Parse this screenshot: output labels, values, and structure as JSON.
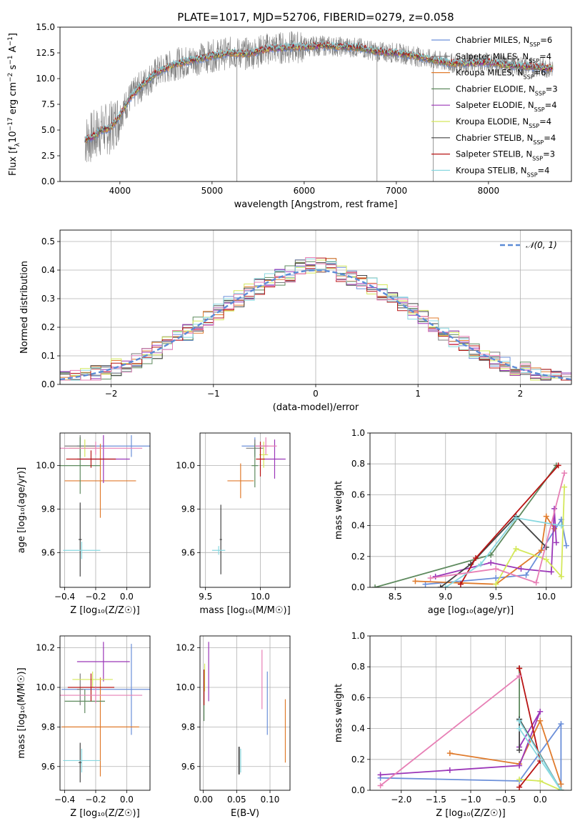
{
  "figure": {
    "title": "PLATE=1017, MJD=52706, FIBERID=0279, z=0.058"
  },
  "colors": {
    "chabrier_miles": "#6b8fd9",
    "salpeter_miles": "#7b7b7b",
    "kroupa_miles": "#e07b2c",
    "chabrier_elodie": "#5e8a5e",
    "salpeter_elodie": "#9b36b8",
    "kroupa_elodie": "#d4e85a",
    "chabrier_stelib": "#444444",
    "salpeter_stelib": "#b81414",
    "kroupa_stelib": "#88d8e0",
    "extra_pink": "#e77fb5",
    "normal_dashed": "#5b8bd6",
    "grid": "#b0b0b0",
    "data_spectrum": "#808080"
  },
  "chart_data": [
    {
      "type": "line",
      "name": "spectrum",
      "title": "PLATE=1017, MJD=52706, FIBERID=0279, z=0.058",
      "xlabel": "wavelength [Angstrom, rest frame]",
      "ylabel": "Flux [f_λ 10^-17 erg cm^-2 s^-1 A^-1]",
      "xlim": [
        3350,
        8900
      ],
      "ylim": [
        0,
        15
      ],
      "xticks": [
        4000,
        5000,
        6000,
        7000,
        8000
      ],
      "yticks": [
        0.0,
        2.5,
        5.0,
        7.5,
        10.0,
        12.5,
        15.0
      ],
      "ytick_labels": [
        "0.0",
        "2.5",
        "5.0",
        "7.5",
        "10.0",
        "12.5",
        "15.0"
      ],
      "grid": false,
      "legend_position": "right",
      "legend": [
        {
          "label": "Chabrier MILES, N",
          "sub": "SSP",
          "suffix": "=6",
          "color_key": "chabrier_miles"
        },
        {
          "label": "Salpeter MILES, N",
          "sub": "SSP",
          "suffix": "=4",
          "color_key": "salpeter_miles"
        },
        {
          "label": "Kroupa MILES, N",
          "sub": "SSP",
          "suffix": "=6",
          "color_key": "kroupa_miles"
        },
        {
          "label": "Chabrier ELODIE, N",
          "sub": "SSP",
          "suffix": "=3",
          "color_key": "chabrier_elodie"
        },
        {
          "label": "Salpeter ELODIE, N",
          "sub": "SSP",
          "suffix": "=4",
          "color_key": "salpeter_elodie"
        },
        {
          "label": "Kroupa ELODIE, N",
          "sub": "SSP",
          "suffix": "=4",
          "color_key": "kroupa_elodie"
        },
        {
          "label": "Chabrier STELIB, N",
          "sub": "SSP",
          "suffix": "=4",
          "color_key": "chabrier_stelib"
        },
        {
          "label": "Salpeter STELIB, N",
          "sub": "SSP",
          "suffix": "=3",
          "color_key": "salpeter_stelib"
        },
        {
          "label": "Kroupa STELIB, N",
          "sub": "SSP",
          "suffix": "=4",
          "color_key": "kroupa_stelib"
        }
      ],
      "envelope_x": [
        3620,
        3700,
        3800,
        3900,
        3950,
        4000,
        4100,
        4200,
        4300,
        4400,
        4500,
        4600,
        4800,
        5000,
        5200,
        5400,
        5600,
        5800,
        6000,
        6200,
        6400,
        6600,
        6800,
        7000,
        7200,
        7400,
        7600,
        7800,
        8000,
        8200,
        8400,
        8700
      ],
      "envelope_y": [
        4.0,
        4.3,
        5.0,
        5.2,
        5.8,
        6.4,
        8.0,
        9.0,
        9.8,
        10.6,
        11.0,
        11.4,
        11.8,
        12.2,
        12.5,
        12.4,
        12.9,
        13.0,
        13.1,
        13.2,
        13.1,
        13.0,
        12.6,
        12.5,
        12.2,
        11.8,
        11.5,
        11.5,
        11.6,
        11.3,
        11.2,
        11.0
      ],
      "data_spikes_x": [
        5270,
        6790,
        7400
      ],
      "data_spikes_y": [
        0.0,
        0.0,
        0.0
      ]
    },
    {
      "type": "line",
      "name": "residuals",
      "xlabel": "(data-model)/error",
      "ylabel": "Normed distribution",
      "xlim": [
        -2.5,
        2.5
      ],
      "ylim": [
        0,
        0.54
      ],
      "xticks": [
        -2,
        -1,
        0,
        1,
        2
      ],
      "xtick_labels": [
        "−2",
        "−1",
        "0",
        "1",
        "2"
      ],
      "yticks": [
        0.0,
        0.1,
        0.2,
        0.3,
        0.4,
        0.5
      ],
      "ytick_labels": [
        "0.0",
        "0.1",
        "0.2",
        "0.3",
        "0.4",
        "0.5"
      ],
      "grid": true,
      "legend_position": "top-right",
      "legend_label": "𝒩(0, 1)",
      "bin_width": 0.1
    },
    {
      "type": "scatter",
      "name": "age_vs_Z",
      "xlabel": "Z [log₁₀(Z/Z☉)]",
      "ylabel": "age  [log₁₀(age/yr)]",
      "xlim": [
        -0.43,
        0.15
      ],
      "ylim": [
        9.44,
        10.15
      ],
      "xticks": [
        -0.4,
        -0.2,
        0.0
      ],
      "xtick_labels": [
        "−0.4",
        "−0.2",
        "0.0"
      ],
      "yticks": [
        9.6,
        9.8,
        10.0
      ],
      "ytick_labels": [
        "9.6",
        "9.8",
        "10.0"
      ],
      "grid": true,
      "points": [
        {
          "color_key": "chabrier_miles",
          "x": 0.03,
          "y": 10.09,
          "xerr": 0.35,
          "yerr": 0.05
        },
        {
          "color_key": "salpeter_miles",
          "x": -0.3,
          "y": 10.09,
          "xerr": 0.1,
          "yerr": 0.05
        },
        {
          "color_key": "kroupa_miles",
          "x": -0.17,
          "y": 9.93,
          "xerr": 0.23,
          "yerr": 0.17
        },
        {
          "color_key": "chabrier_elodie",
          "x": -0.3,
          "y": 10.0,
          "xerr": 0.13,
          "yerr": 0.13
        },
        {
          "color_key": "salpeter_elodie",
          "x": -0.15,
          "y": 10.03,
          "xerr": 0.17,
          "yerr": 0.11
        },
        {
          "color_key": "kroupa_elodie",
          "x": -0.27,
          "y": 10.08,
          "xerr": 0.1,
          "yerr": 0.04
        },
        {
          "color_key": "chabrier_stelib",
          "x": -0.3,
          "y": 9.66,
          "xerr": 0.01,
          "yerr": 0.17
        },
        {
          "color_key": "salpeter_stelib",
          "x": -0.23,
          "y": 10.03,
          "xerr": 0.16,
          "yerr": 0.04
        },
        {
          "color_key": "kroupa_stelib",
          "x": -0.29,
          "y": 9.61,
          "xerr": 0.12,
          "yerr": 0.04
        },
        {
          "color_key": "extra_pink",
          "x": -0.2,
          "y": 10.08,
          "xerr": 0.3,
          "yerr": 0.03
        }
      ]
    },
    {
      "type": "scatter",
      "name": "age_vs_mass",
      "xlabel": "mass [log₁₀(M/M☉)]",
      "ylabel": "",
      "xlim": [
        9.45,
        10.27
      ],
      "ylim": [
        9.44,
        10.15
      ],
      "xticks": [
        9.5,
        10.0
      ],
      "xtick_labels": [
        "9.5",
        "10.0"
      ],
      "yticks": [
        9.6,
        9.8,
        10.0
      ],
      "ytick_labels": [
        "9.6",
        "9.8",
        "10.0"
      ],
      "grid": true,
      "points": [
        {
          "color_key": "chabrier_miles",
          "x": 9.95,
          "y": 10.09,
          "xerr": 0.12,
          "yerr": 0.04
        },
        {
          "color_key": "salpeter_miles",
          "x": 9.95,
          "y": 10.08,
          "xerr": 0.08,
          "yerr": 0.04
        },
        {
          "color_key": "kroupa_miles",
          "x": 9.82,
          "y": 9.93,
          "xerr": 0.12,
          "yerr": 0.08
        },
        {
          "color_key": "chabrier_elodie",
          "x": 9.95,
          "y": 10.0,
          "xerr": 0.03,
          "yerr": 0.1
        },
        {
          "color_key": "salpeter_elodie",
          "x": 10.13,
          "y": 10.03,
          "xerr": 0.1,
          "yerr": 0.09
        },
        {
          "color_key": "kroupa_elodie",
          "x": 10.03,
          "y": 10.05,
          "xerr": 0.04,
          "yerr": 0.06
        },
        {
          "color_key": "chabrier_stelib",
          "x": 9.64,
          "y": 9.66,
          "xerr": 0.01,
          "yerr": 0.16
        },
        {
          "color_key": "salpeter_stelib",
          "x": 10.0,
          "y": 10.03,
          "xerr": 0.04,
          "yerr": 0.08
        },
        {
          "color_key": "kroupa_stelib",
          "x": 9.62,
          "y": 9.61,
          "xerr": 0.06,
          "yerr": 0.02
        },
        {
          "color_key": "extra_pink",
          "x": 10.05,
          "y": 10.09,
          "xerr": 0.1,
          "yerr": 0.04
        }
      ]
    },
    {
      "type": "line",
      "name": "mass_weight_vs_age",
      "xlabel": "age  [log₁₀(age/yr)]",
      "ylabel": "mass weight",
      "xlim": [
        8.25,
        10.25
      ],
      "ylim": [
        0,
        1
      ],
      "xticks": [
        8.5,
        9.0,
        9.5,
        10.0
      ],
      "xtick_labels": [
        "8.5",
        "9.0",
        "9.5",
        "10.0"
      ],
      "yticks": [
        0.0,
        0.2,
        0.4,
        0.6,
        0.8,
        1.0
      ],
      "ytick_labels": [
        "0.0",
        "0.2",
        "0.4",
        "0.6",
        "0.8",
        "1.0"
      ],
      "grid": true,
      "series": [
        {
          "color_key": "chabrier_miles",
          "x": [
            8.8,
            9.5,
            9.8,
            10.15,
            10.2
          ],
          "y": [
            0.02,
            0.06,
            0.08,
            0.44,
            0.27
          ]
        },
        {
          "color_key": "kroupa_miles",
          "x": [
            8.7,
            9.5,
            9.95,
            10.0,
            10.08
          ],
          "y": [
            0.04,
            0.02,
            0.24,
            0.46,
            0.38
          ]
        },
        {
          "color_key": "chabrier_elodie",
          "x": [
            8.3,
            9.45,
            10.1
          ],
          "y": [
            0.0,
            0.21,
            0.79
          ]
        },
        {
          "color_key": "salpeter_elodie",
          "x": [
            8.9,
            9.45,
            9.75,
            10.05,
            10.08,
            10.1
          ],
          "y": [
            0.07,
            0.16,
            0.12,
            0.1,
            0.51,
            0.29
          ]
        },
        {
          "color_key": "kroupa_elodie",
          "x": [
            9.5,
            9.7,
            10.0,
            10.15,
            10.18
          ],
          "y": [
            0.02,
            0.25,
            0.18,
            0.07,
            0.65
          ]
        },
        {
          "color_key": "chabrier_stelib",
          "x": [
            8.95,
            9.25,
            9.7,
            10.0
          ],
          "y": [
            0.0,
            0.15,
            0.46,
            0.26
          ]
        },
        {
          "color_key": "salpeter_stelib",
          "x": [
            9.15,
            9.3,
            10.12
          ],
          "y": [
            0.02,
            0.19,
            0.79
          ]
        },
        {
          "color_key": "kroupa_stelib",
          "x": [
            9.0,
            9.35,
            9.7,
            10.15
          ],
          "y": [
            0.0,
            0.15,
            0.45,
            0.4
          ]
        },
        {
          "color_key": "extra_pink",
          "x": [
            8.85,
            9.5,
            9.9,
            10.18
          ],
          "y": [
            0.06,
            0.12,
            0.03,
            0.74
          ]
        }
      ]
    },
    {
      "type": "scatter",
      "name": "mass_vs_Z",
      "xlabel": "Z [log₁₀(Z/Z☉)]",
      "ylabel": "mass [log₁₀(M/M☉)]",
      "xlim": [
        -0.43,
        0.15
      ],
      "ylim": [
        9.48,
        10.26
      ],
      "xticks": [
        -0.4,
        -0.2,
        0.0
      ],
      "xtick_labels": [
        "−0.4",
        "−0.2",
        "0.0"
      ],
      "yticks": [
        9.6,
        9.8,
        10.0,
        10.2
      ],
      "ytick_labels": [
        "9.6",
        "9.8",
        "10.0",
        "10.2"
      ],
      "grid": true,
      "points": [
        {
          "color_key": "chabrier_miles",
          "x": 0.03,
          "y": 9.99,
          "xerr": 0.45,
          "yerr": 0.23
        },
        {
          "color_key": "salpeter_miles",
          "x": -0.3,
          "y": 9.99,
          "xerr": 0.02,
          "yerr": 0.08
        },
        {
          "color_key": "kroupa_miles",
          "x": -0.17,
          "y": 9.8,
          "xerr": 0.25,
          "yerr": 0.25
        },
        {
          "color_key": "chabrier_elodie",
          "x": -0.27,
          "y": 9.93,
          "xerr": 0.13,
          "yerr": 0.06
        },
        {
          "color_key": "salpeter_elodie",
          "x": -0.15,
          "y": 10.13,
          "xerr": 0.17,
          "yerr": 0.1
        },
        {
          "color_key": "kroupa_elodie",
          "x": -0.22,
          "y": 10.04,
          "xerr": 0.13,
          "yerr": 0.04
        },
        {
          "color_key": "chabrier_stelib",
          "x": -0.3,
          "y": 9.62,
          "xerr": 0.01,
          "yerr": 0.1
        },
        {
          "color_key": "salpeter_stelib",
          "x": -0.23,
          "y": 10.0,
          "xerr": 0.15,
          "yerr": 0.07
        },
        {
          "color_key": "kroupa_stelib",
          "x": -0.29,
          "y": 9.63,
          "xerr": 0.12,
          "yerr": 0.06
        },
        {
          "color_key": "extra_pink",
          "x": -0.2,
          "y": 9.96,
          "xerr": 0.3,
          "yerr": 0.04
        }
      ]
    },
    {
      "type": "scatter",
      "name": "mass_vs_ebv",
      "xlabel": "E(B-V)",
      "ylabel": "",
      "xlim": [
        -0.005,
        0.13
      ],
      "ylim": [
        9.48,
        10.26
      ],
      "xticks": [
        0.0,
        0.05,
        0.1
      ],
      "xtick_labels": [
        "0.00",
        "0.05",
        "0.10"
      ],
      "yticks": [
        9.6,
        9.8,
        10.0,
        10.2
      ],
      "ytick_labels": [
        "9.6",
        "9.8",
        "10.0",
        "10.2"
      ],
      "grid": true,
      "points": [
        {
          "color_key": "chabrier_miles",
          "x": 0.096,
          "y": 9.92,
          "xerr": 0.0,
          "yerr": 0.16
        },
        {
          "color_key": "salpeter_miles",
          "x": 0.053,
          "y": 9.63,
          "xerr": 0.0,
          "yerr": 0.07
        },
        {
          "color_key": "kroupa_miles",
          "x": 0.123,
          "y": 9.78,
          "xerr": 0.0,
          "yerr": 0.16
        },
        {
          "color_key": "chabrier_elodie",
          "x": 0.001,
          "y": 9.93,
          "xerr": 0.0,
          "yerr": 0.1
        },
        {
          "color_key": "salpeter_elodie",
          "x": 0.008,
          "y": 10.08,
          "xerr": 0.0,
          "yerr": 0.15
        },
        {
          "color_key": "kroupa_elodie",
          "x": 0.002,
          "y": 10.05,
          "xerr": 0.0,
          "yerr": 0.07
        },
        {
          "color_key": "chabrier_stelib",
          "x": 0.054,
          "y": 9.63,
          "xerr": 0.0,
          "yerr": 0.07
        },
        {
          "color_key": "salpeter_stelib",
          "x": 0.001,
          "y": 10.0,
          "xerr": 0.0,
          "yerr": 0.09
        },
        {
          "color_key": "kroupa_stelib",
          "x": 0.056,
          "y": 9.63,
          "xerr": 0.0,
          "yerr": 0.06
        },
        {
          "color_key": "extra_pink",
          "x": 0.088,
          "y": 10.04,
          "xerr": 0.0,
          "yerr": 0.15
        }
      ]
    },
    {
      "type": "line",
      "name": "mass_weight_vs_Z",
      "xlabel": "Z [log₁₀(Z/Z☉)]",
      "ylabel": "mass weight",
      "xlim": [
        -2.45,
        0.45
      ],
      "ylim": [
        0,
        1
      ],
      "xticks": [
        -2.0,
        -1.5,
        -1.0,
        -0.5,
        0.0
      ],
      "xtick_labels": [
        "−2.0",
        "−1.5",
        "−1.0",
        "−0.5",
        "0.0"
      ],
      "yticks": [
        0.0,
        0.2,
        0.4,
        0.6,
        0.8,
        1.0
      ],
      "ytick_labels": [
        "0.0",
        "0.2",
        "0.4",
        "0.6",
        "0.8",
        "1.0"
      ],
      "grid": true,
      "series": [
        {
          "color_key": "chabrier_miles",
          "x": [
            -2.3,
            -0.3,
            0.3,
            0.3
          ],
          "y": [
            0.08,
            0.06,
            0.43,
            0.0
          ]
        },
        {
          "color_key": "kroupa_miles",
          "x": [
            -1.3,
            -0.3,
            0.0,
            0.3
          ],
          "y": [
            0.24,
            0.17,
            0.45,
            0.04
          ]
        },
        {
          "color_key": "chabrier_elodie",
          "x": [
            -0.3,
            -0.3,
            0.3
          ],
          "y": [
            0.79,
            0.46,
            0.0
          ]
        },
        {
          "color_key": "salpeter_elodie",
          "x": [
            -2.3,
            -1.3,
            -0.3,
            0.0,
            -0.3
          ],
          "y": [
            0.1,
            0.13,
            0.16,
            0.51,
            0.28
          ]
        },
        {
          "color_key": "kroupa_elodie",
          "x": [
            -0.3,
            0.0,
            0.3
          ],
          "y": [
            0.07,
            0.06,
            0.0
          ]
        },
        {
          "color_key": "chabrier_stelib",
          "x": [
            -0.3,
            -0.3,
            0.3
          ],
          "y": [
            0.26,
            0.46,
            0.0
          ]
        },
        {
          "color_key": "salpeter_stelib",
          "x": [
            -0.3,
            0.0,
            -0.3,
            -0.3
          ],
          "y": [
            0.02,
            0.19,
            0.79,
            0.79
          ]
        },
        {
          "color_key": "kroupa_stelib",
          "x": [
            -0.3,
            0.3,
            -0.3
          ],
          "y": [
            0.45,
            0.0,
            0.4
          ]
        },
        {
          "color_key": "extra_pink",
          "x": [
            -2.3,
            -0.3
          ],
          "y": [
            0.03,
            0.74
          ]
        }
      ]
    }
  ]
}
